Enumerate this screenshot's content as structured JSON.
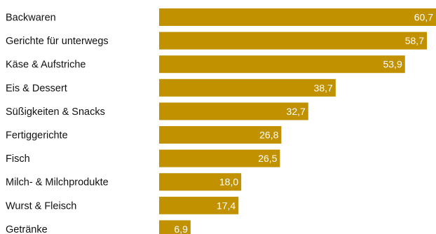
{
  "chart_data": {
    "type": "bar",
    "orientation": "horizontal",
    "categories": [
      "Backwaren",
      "Gerichte für unterwegs",
      "Käse & Aufstriche",
      "Eis & Dessert",
      "Süßigkeiten & Snacks",
      "Fertiggerichte",
      "Fisch",
      "Milch- & Milchprodukte",
      "Wurst & Fleisch",
      "Getränke"
    ],
    "values": [
      60.7,
      58.7,
      53.9,
      38.7,
      32.7,
      26.8,
      26.5,
      18.0,
      17.4,
      6.9
    ],
    "value_labels": [
      "60,7",
      "58,7",
      "53,9",
      "38,7",
      "32,7",
      "26,8",
      "26,5",
      "18,0",
      "17,4",
      "6,9"
    ],
    "bar_color": "#c29100",
    "label_color": "#ffffff",
    "xlim": [
      0,
      60.7
    ],
    "grid": false,
    "legend": "none"
  }
}
